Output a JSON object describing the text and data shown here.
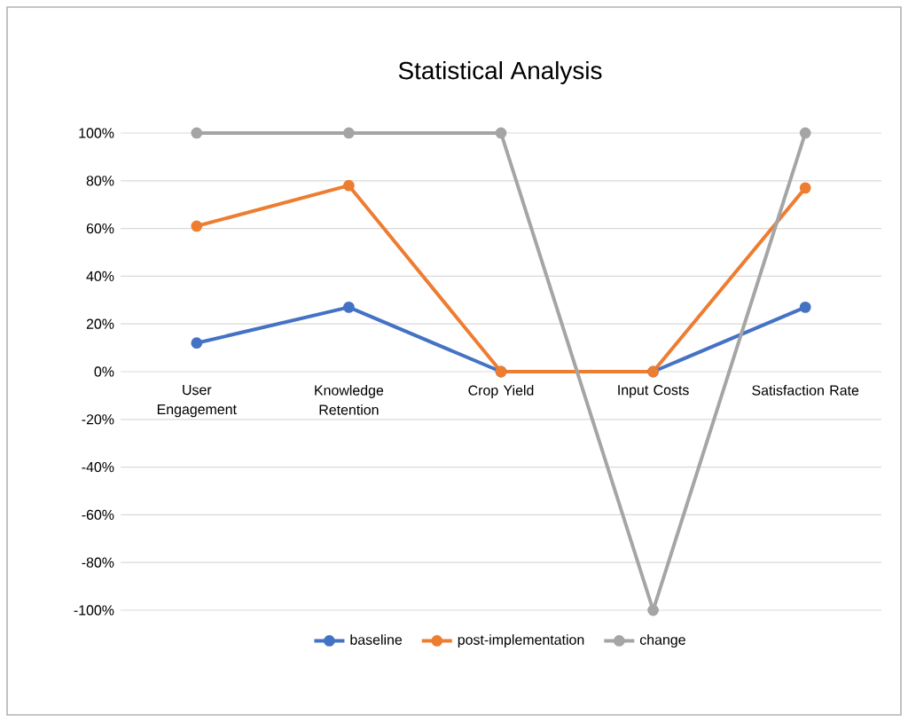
{
  "chart_data": {
    "type": "line",
    "title": "Statistical Analysis",
    "categories": [
      "User Engagement",
      "Knowledge Retention",
      "Crop Yield",
      "Input Costs",
      "Satisfaction Rate"
    ],
    "series": [
      {
        "name": "baseline",
        "color": "#4472c4",
        "values": [
          12,
          27,
          0,
          0,
          27
        ]
      },
      {
        "name": "post-implementation",
        "color": "#ed7d31",
        "values": [
          61,
          78,
          0,
          0,
          77
        ]
      },
      {
        "name": "change",
        "color": "#a5a5a5",
        "values": [
          100,
          100,
          100,
          -100,
          100
        ]
      }
    ],
    "ylim": [
      -100,
      100
    ],
    "yticks": [
      {
        "value": -100,
        "label": "-100%"
      },
      {
        "value": -80,
        "label": "-80%"
      },
      {
        "value": -60,
        "label": "-60%"
      },
      {
        "value": -40,
        "label": "-40%"
      },
      {
        "value": -20,
        "label": "-20%"
      },
      {
        "value": 0,
        "label": "0%"
      },
      {
        "value": 20,
        "label": "20%"
      },
      {
        "value": 40,
        "label": "40%"
      },
      {
        "value": 60,
        "label": "60%"
      },
      {
        "value": 80,
        "label": "80%"
      },
      {
        "value": 100,
        "label": "100%"
      }
    ],
    "grid": "y",
    "legend": "bottom",
    "marker": "circle",
    "line_style": "solid"
  }
}
